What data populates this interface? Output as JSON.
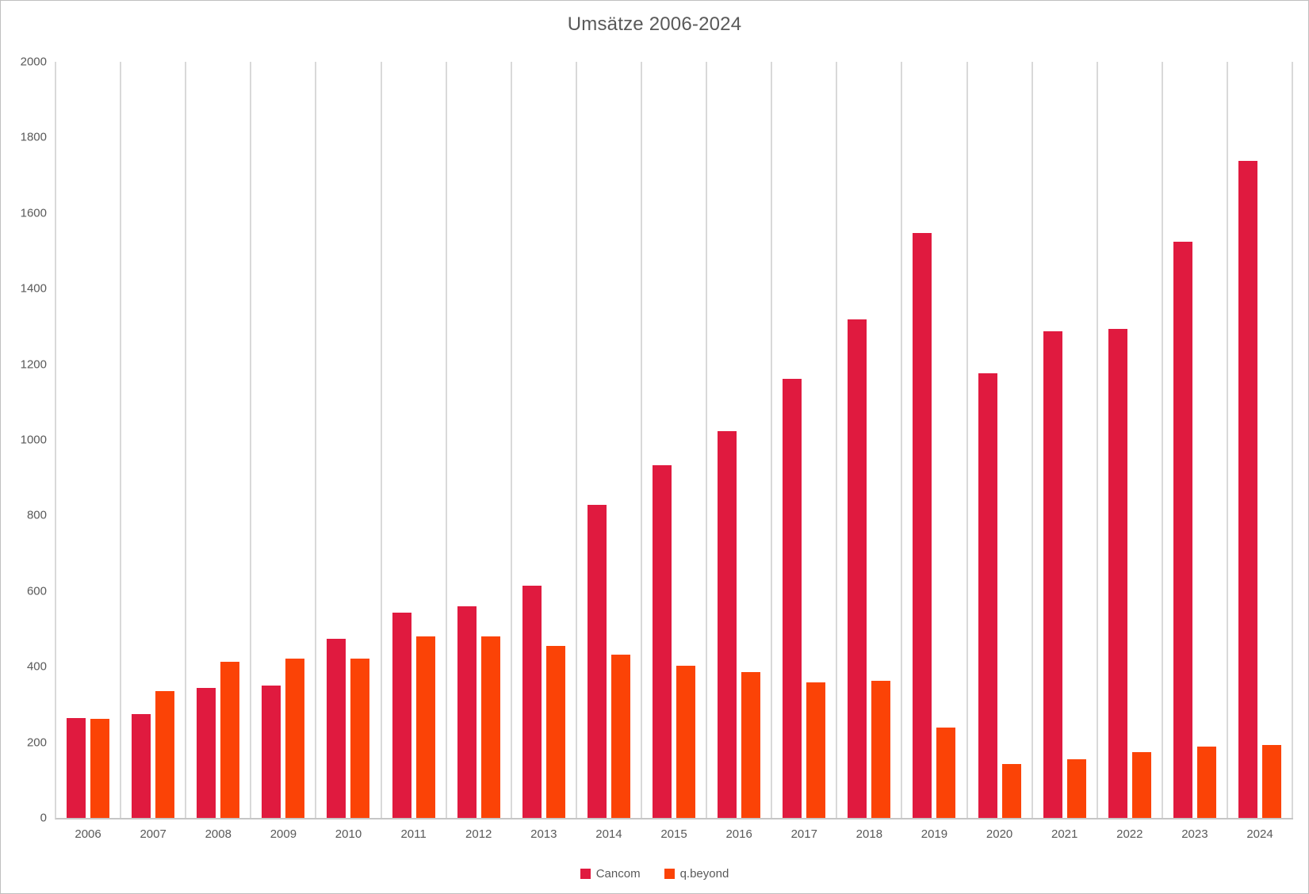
{
  "chart_data": {
    "type": "bar",
    "title": "Umsätze 2006-2024",
    "categories": [
      "2006",
      "2007",
      "2008",
      "2009",
      "2010",
      "2011",
      "2012",
      "2013",
      "2014",
      "2015",
      "2016",
      "2017",
      "2018",
      "2019",
      "2020",
      "2021",
      "2022",
      "2023",
      "2024"
    ],
    "series": [
      {
        "name": "Cancom",
        "color": "#E01A3F",
        "values": [
          265,
          274,
          343,
          350,
          474,
          544,
          559,
          614,
          829,
          932,
          1023,
          1161,
          1318,
          1548,
          1176,
          1287,
          1293,
          1524,
          1738
        ]
      },
      {
        "name": "q.beyond",
        "color": "#FB4306",
        "values": [
          263,
          335,
          414,
          421,
          422,
          480,
          481,
          456,
          431,
          403,
          386,
          359,
          363,
          238,
          143,
          155,
          173,
          189,
          193
        ]
      }
    ],
    "ylim": [
      0,
      2000
    ],
    "yticks": [
      "0",
      "200",
      "400",
      "600",
      "800",
      "1000",
      "1200",
      "1400",
      "1600",
      "1800",
      "2000"
    ],
    "xlabel": "",
    "ylabel": "",
    "grid": "vertical-only",
    "legend_position": "bottom-center",
    "colors": {
      "grid_line": "#d9d9d9",
      "axis_line": "#c6c6c6",
      "text": "#595959",
      "background": "#ffffff"
    }
  }
}
